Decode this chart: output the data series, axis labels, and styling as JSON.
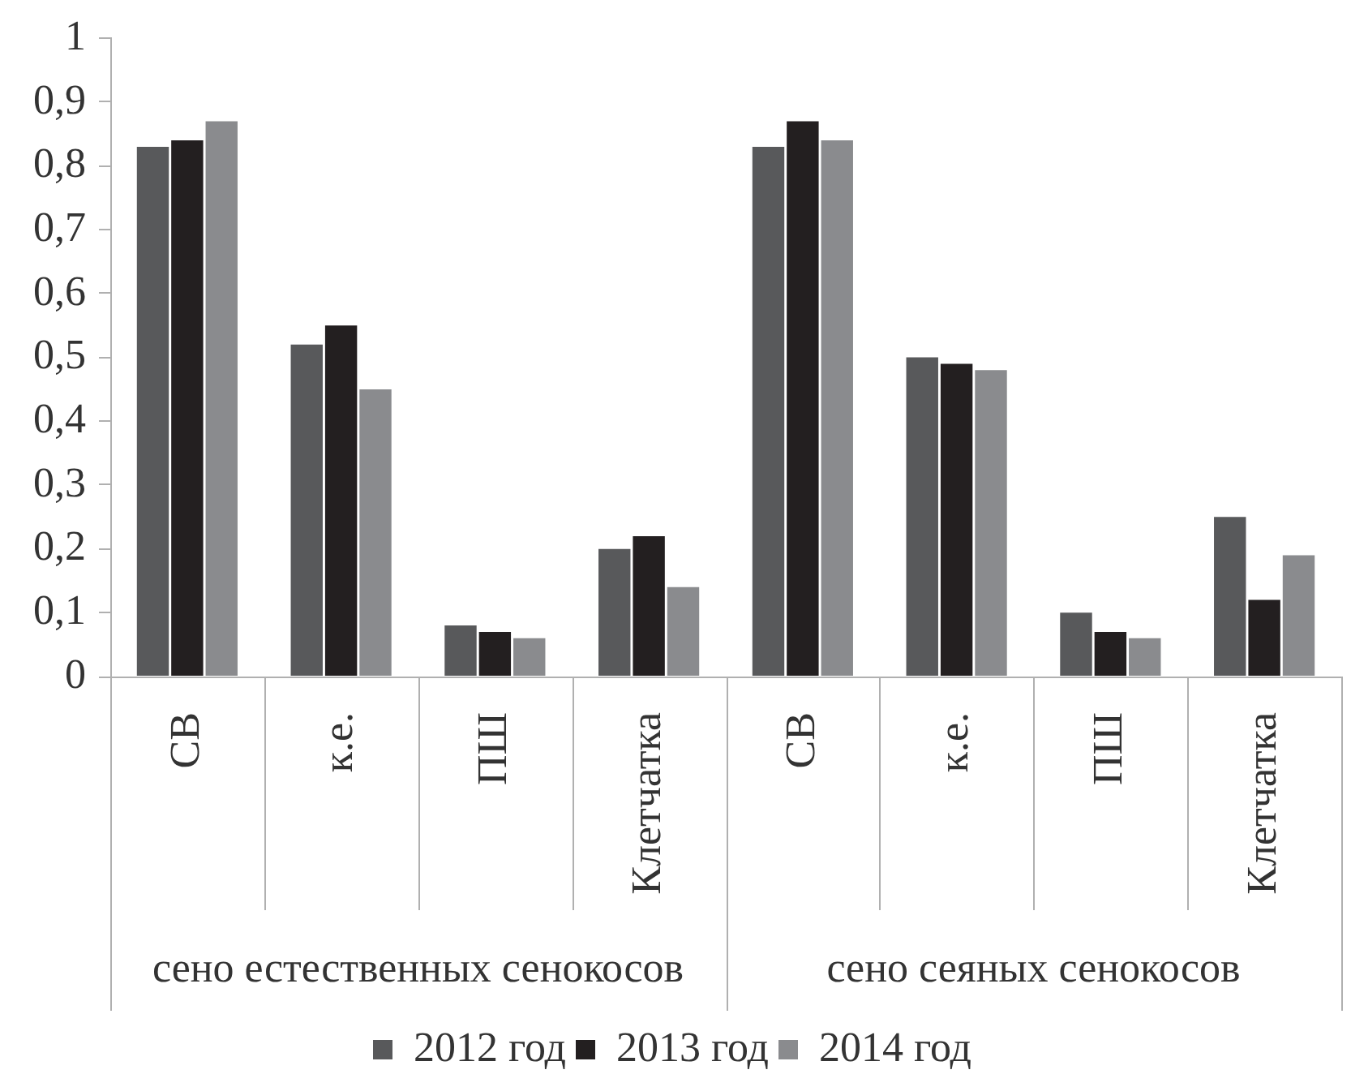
{
  "chart_data": {
    "type": "bar",
    "categories": [
      "СВ",
      "к.е.",
      "ПШ",
      "Клетчатка",
      "СВ",
      "к.е.",
      "ПШ",
      "Клетчатка"
    ],
    "series": [
      {
        "name": "2012 год",
        "color": "#58595b",
        "values": [
          0.83,
          0.52,
          0.08,
          0.2,
          0.83,
          0.5,
          0.1,
          0.25
        ]
      },
      {
        "name": "2013 год",
        "color": "#231f20",
        "values": [
          0.84,
          0.55,
          0.07,
          0.22,
          0.87,
          0.49,
          0.07,
          0.12
        ]
      },
      {
        "name": "2014 год",
        "color": "#8a8b8e",
        "values": [
          0.87,
          0.45,
          0.06,
          0.14,
          0.84,
          0.48,
          0.06,
          0.19
        ]
      }
    ],
    "ylim": [
      0,
      1
    ],
    "yticks": [
      0,
      {
        "value": 0.1,
        "label": "0,1"
      },
      {
        "value": 0.2,
        "label": "0,2"
      },
      {
        "value": 0.3,
        "label": "0,3"
      },
      {
        "value": 0.4,
        "label": "0,4"
      },
      {
        "value": 0.5,
        "label": "0,5"
      },
      {
        "value": 0.6,
        "label": "0,6"
      },
      {
        "value": 0.7,
        "label": "0,7"
      },
      {
        "value": 0.8,
        "label": "0,8"
      },
      {
        "value": 0.9,
        "label": "0,9"
      },
      1
    ],
    "grid": false,
    "legend": "bottom",
    "annotations": [
      "сено естественных сенокосов",
      "сено сеяных сенокосов"
    ]
  }
}
